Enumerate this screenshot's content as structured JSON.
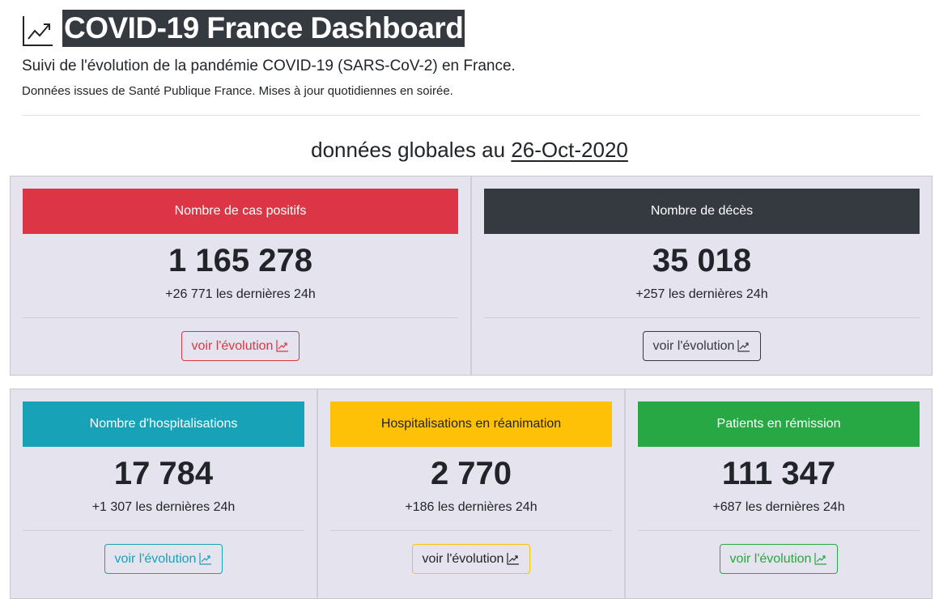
{
  "header": {
    "title": "COVID-19 France Dashboard",
    "subtitle": "Suivi de l'évolution de la pandémie COVID-19 (SARS-CoV-2) en France.",
    "source": "Données issues de Santé Publique France. Mises à jour quotidiennes en soirée."
  },
  "section": {
    "heading": "données globales au",
    "date": "26-Oct-2020"
  },
  "rows": [
    [
      {
        "title": "Nombre de cas positifs",
        "value": "1 165 278",
        "change": "+26 771 les dernières 24h",
        "button": "voir l'évolution",
        "color": "#dc3545"
      },
      {
        "title": "Nombre de décès",
        "value": "35 018",
        "change": "+257 les dernières 24h",
        "button": "voir l'évolution",
        "color": "#343a40"
      }
    ],
    [
      {
        "title": "Nombre d'hospitalisations",
        "value": "17 784",
        "change": "+1 307 les dernières 24h",
        "button": "voir l'évolution",
        "color": "#17a2b8"
      },
      {
        "title": "Hospitalisations en réanimation",
        "value": "2 770",
        "change": "+186 les dernières 24h",
        "button": "voir l'évolution",
        "color": "#ffc107"
      },
      {
        "title": "Patients en rémission",
        "value": "111 347",
        "change": "+687 les dernières 24h",
        "button": "voir l'évolution",
        "color": "#28a745"
      }
    ]
  ]
}
